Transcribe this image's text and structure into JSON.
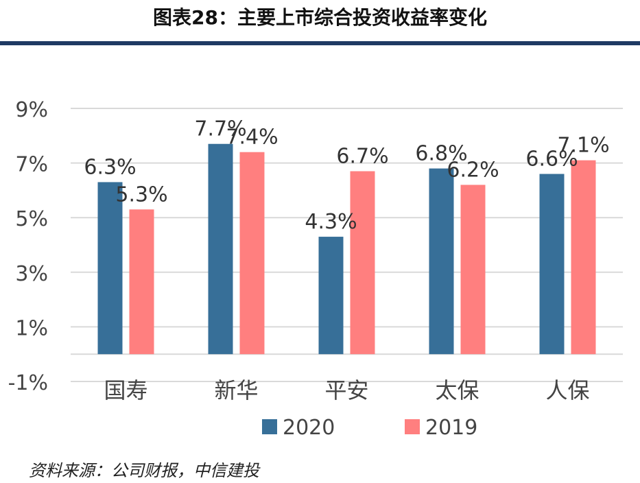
{
  "title": "图表28：主要上市综合投资收益率变化",
  "source": "资料来源：公司财报，中信建投",
  "chart_data": {
    "type": "bar",
    "categories": [
      "国寿",
      "新华",
      "平安",
      "太保",
      "人保"
    ],
    "series": [
      {
        "name": "2020",
        "values": [
          6.3,
          7.7,
          4.3,
          6.8,
          6.6
        ],
        "color": "#376f98"
      },
      {
        "name": "2019",
        "values": [
          5.3,
          7.4,
          6.7,
          6.2,
          7.1
        ],
        "color": "#ff7f7f"
      }
    ],
    "ylim": [
      -1,
      9
    ],
    "yticks": [
      "-1%",
      "1%",
      "3%",
      "5%",
      "7%",
      "9%"
    ],
    "ytick_values": [
      -1,
      1,
      3,
      5,
      7,
      9
    ],
    "value_suffix": "%",
    "grid": true,
    "legend_position": "bottom"
  }
}
